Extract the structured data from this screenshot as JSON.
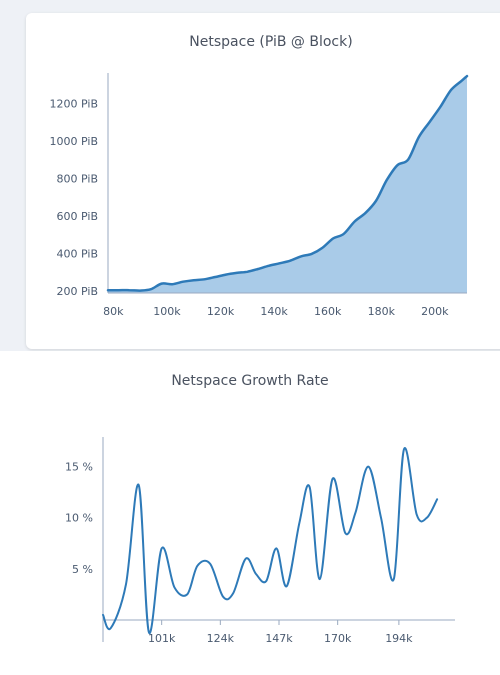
{
  "charts": [
    {
      "type": "area",
      "title": "Netspace (PiB @ Block)",
      "xlim": [
        78000,
        212000
      ],
      "ylim": [
        190,
        1340
      ],
      "xticks": [
        80000,
        100000,
        120000,
        140000,
        160000,
        180000,
        200000
      ],
      "xtick_labels": [
        "80k",
        "100k",
        "120k",
        "140k",
        "160k",
        "180k",
        "200k"
      ],
      "yticks": [
        200,
        400,
        600,
        800,
        1000,
        1200
      ],
      "ytick_labels": [
        "200 PiB",
        "400 PiB",
        "600 PiB",
        "800 PiB",
        "1000 PiB",
        "1200 PiB"
      ],
      "colors": {
        "line": "#2e7ab8",
        "fill": "#a9cbe8",
        "axis": "#9aaac0",
        "tick": "#4a5a70"
      },
      "x": [
        78000,
        82000,
        86000,
        90000,
        94000,
        98000,
        102000,
        106000,
        110000,
        114000,
        118000,
        122000,
        126000,
        130000,
        134000,
        138000,
        142000,
        146000,
        150000,
        154000,
        158000,
        162000,
        166000,
        170000,
        174000,
        178000,
        182000,
        186000,
        190000,
        194000,
        198000,
        202000,
        206000,
        210000,
        212000
      ],
      "values": [
        205,
        205,
        205,
        203,
        210,
        240,
        237,
        250,
        258,
        263,
        275,
        288,
        297,
        303,
        318,
        335,
        348,
        362,
        385,
        398,
        430,
        480,
        505,
        570,
        615,
        680,
        790,
        870,
        900,
        1020,
        1100,
        1180,
        1270,
        1320,
        1345
      ]
    },
    {
      "type": "line",
      "title": "Netspace Growth Rate",
      "xlim": [
        78000,
        216000
      ],
      "ylim": [
        0,
        17.5
      ],
      "xticks": [
        101000,
        124000,
        147000,
        170000,
        194000
      ],
      "xtick_labels": [
        "101k",
        "124k",
        "147k",
        "170k",
        "194k"
      ],
      "yticks": [
        5,
        10,
        15
      ],
      "ytick_labels": [
        "5 %",
        "10 %",
        "15 %"
      ],
      "colors": {
        "line": "#2e7ab8",
        "axis": "#9aaac0",
        "tick": "#4a5a70"
      },
      "x": [
        78000,
        81000,
        87000,
        92000,
        96000,
        101000,
        106000,
        111000,
        115000,
        120000,
        125000,
        129000,
        134000,
        138000,
        142000,
        146000,
        150000,
        155000,
        159000,
        163000,
        168000,
        173000,
        177000,
        182000,
        187000,
        192000,
        196000,
        201000,
        205000,
        209000
      ],
      "values": [
        0.5,
        -0.8,
        3.5,
        13.2,
        -1.2,
        7.0,
        3.2,
        2.5,
        5.3,
        5.5,
        2.3,
        2.6,
        6.0,
        4.5,
        3.8,
        7.0,
        3.3,
        9.5,
        13.0,
        4.0,
        13.8,
        8.5,
        10.5,
        15.0,
        10.0,
        4.0,
        16.7,
        10.3,
        10.0,
        11.8
      ]
    }
  ]
}
